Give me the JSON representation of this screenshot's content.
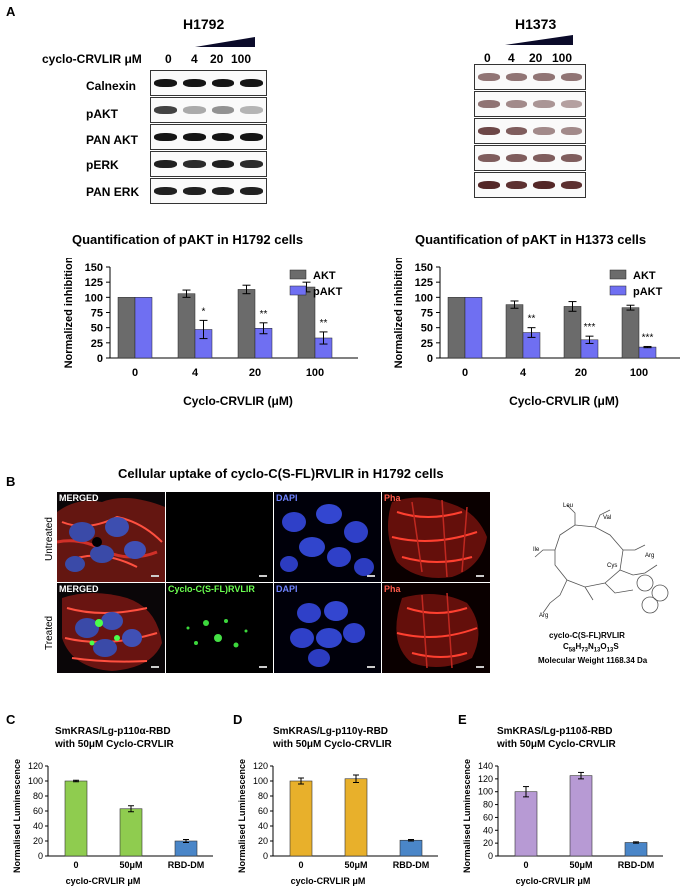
{
  "panel_labels": {
    "a": "A",
    "b": "B",
    "c": "C",
    "d": "D",
    "e": "E"
  },
  "western_blot": {
    "h1792": {
      "cell_line": "H1792",
      "treatment_label": "cyclo-CRVLIR μM",
      "concentrations": [
        "0",
        "4",
        "20",
        "100"
      ],
      "rows": [
        "Calnexin",
        "pAKT",
        "PAN AKT",
        "pERK",
        "PAN ERK"
      ],
      "band_intensity": [
        [
          1.0,
          1.0,
          1.0,
          1.0
        ],
        [
          0.8,
          0.35,
          0.45,
          0.3
        ],
        [
          1.0,
          1.0,
          1.0,
          1.0
        ],
        [
          0.95,
          0.9,
          0.95,
          0.9
        ],
        [
          0.95,
          0.95,
          0.95,
          0.95
        ]
      ]
    },
    "h1373": {
      "cell_line": "H1373",
      "concentrations": [
        "0",
        "4",
        "20",
        "100"
      ],
      "band_intensity": [
        [
          0.6,
          0.6,
          0.6,
          0.6
        ],
        [
          0.6,
          0.5,
          0.45,
          0.4
        ],
        [
          0.8,
          0.7,
          0.5,
          0.5
        ],
        [
          0.7,
          0.7,
          0.7,
          0.7
        ],
        [
          0.95,
          0.9,
          0.95,
          0.9
        ]
      ]
    }
  },
  "microscopy": {
    "title": "Cellular uptake of cyclo-C(S-FL)RVLIR in H1792 cells",
    "row_labels": [
      "Untreated",
      "Treated"
    ],
    "labels_untreated": [
      "MERGED",
      "",
      "DAPI",
      "Pha"
    ],
    "labels_treated": [
      "MERGED",
      "Cyclo-C(S-FL)RVLIR",
      "DAPI",
      "Pha"
    ],
    "structure": {
      "residues": {
        "leu": "Leu",
        "val": "Val",
        "ile": "Ile",
        "arg1": "Arg",
        "cys": "Cys",
        "arg2": "Arg"
      },
      "name": "cyclo-C(S-FL)RVLIR",
      "formula_main": "C",
      "formula_sub1": "58",
      "formula_h": "H",
      "formula_sub2": "73",
      "formula_n": "N",
      "formula_sub3": "13",
      "formula_o": "O",
      "formula_sub4": "13",
      "formula_s": "S",
      "mw": "Molecular Weight 1168.34 Da"
    }
  },
  "colors": {
    "akt": "#6b6b6b",
    "pakt": "#6f6ff2",
    "alpha": "#8fcc4f",
    "gamma": "#e8b02b",
    "delta": "#b79ad4",
    "rbd": "#4a86c8"
  },
  "chart_data": [
    {
      "id": "quant_h1792",
      "type": "bar",
      "title": "Quantification of pAKT in H1792  cells",
      "xlabel": "Cyclo-CRVLIR (μM)",
      "ylabel": "Normalized inhibition",
      "categories": [
        "0",
        "4",
        "20",
        "100"
      ],
      "ylim": [
        0,
        150
      ],
      "yticks": [
        0,
        25,
        50,
        75,
        100,
        125,
        150
      ],
      "legend_position": "right",
      "series": [
        {
          "name": "AKT",
          "values": [
            100,
            106,
            113,
            117
          ],
          "errors": [
            0,
            6,
            7,
            8
          ]
        },
        {
          "name": "pAKT",
          "values": [
            100,
            47,
            49,
            33
          ],
          "errors": [
            0,
            15,
            9,
            10
          ]
        }
      ],
      "annotations": [
        "",
        "*",
        "**",
        "**"
      ]
    },
    {
      "id": "quant_h1373",
      "type": "bar",
      "title": "Quantification of pAKT in H1373 cells",
      "xlabel": "Cyclo-CRVLIR (μM)",
      "ylabel": "Normalized inhibition",
      "categories": [
        "0",
        "4",
        "20",
        "100"
      ],
      "ylim": [
        0,
        150
      ],
      "yticks": [
        0,
        25,
        50,
        75,
        100,
        125,
        150
      ],
      "legend_position": "right",
      "series": [
        {
          "name": "AKT",
          "values": [
            100,
            88,
            85,
            83
          ],
          "errors": [
            0,
            6,
            8,
            4
          ]
        },
        {
          "name": "pAKT",
          "values": [
            100,
            42,
            30,
            18
          ],
          "errors": [
            0,
            8,
            6,
            1
          ]
        }
      ],
      "annotations": [
        "",
        "**",
        "***",
        "***"
      ]
    },
    {
      "id": "alpha",
      "type": "bar",
      "title_line1": "SmKRAS/Lg-p110α-RBD",
      "title_line2": "with 50μM Cyclo-CRVLIR",
      "xlabel": "cyclo-CRVLIR μM",
      "ylabel": "Normalised Luminescence",
      "categories": [
        "0",
        "50μM",
        "RBD-DM"
      ],
      "values": [
        100,
        63,
        20
      ],
      "errors": [
        1,
        4,
        2
      ],
      "ylim": [
        0,
        120
      ],
      "yticks": [
        0,
        20,
        40,
        60,
        80,
        100,
        120
      ]
    },
    {
      "id": "gamma",
      "type": "bar",
      "title_line1": "SmKRAS/Lg-p110γ-RBD",
      "title_line2": "with 50μM Cyclo-CRVLIR",
      "xlabel": "cyclo-CRVLIR μM",
      "ylabel": "Normalised Luminescence",
      "categories": [
        "0",
        "50μM",
        "RBD-DM"
      ],
      "values": [
        100,
        103,
        21
      ],
      "errors": [
        4,
        5,
        1
      ],
      "ylim": [
        0,
        120
      ],
      "yticks": [
        0,
        20,
        40,
        60,
        80,
        100,
        120
      ]
    },
    {
      "id": "delta",
      "type": "bar",
      "title_line1": "SmKRAS/Lg-p110δ-RBD",
      "title_line2": "with 50μM Cyclo-CRVLIR",
      "xlabel": "cyclo-CRVLIR μM",
      "ylabel": "Normalised Luminescence",
      "categories": [
        "0",
        "50μM",
        "RBD-DM"
      ],
      "values": [
        100,
        125,
        21
      ],
      "errors": [
        8,
        5,
        1
      ],
      "ylim": [
        0,
        140
      ],
      "yticks": [
        0,
        20,
        40,
        60,
        80,
        100,
        120,
        140
      ]
    }
  ]
}
